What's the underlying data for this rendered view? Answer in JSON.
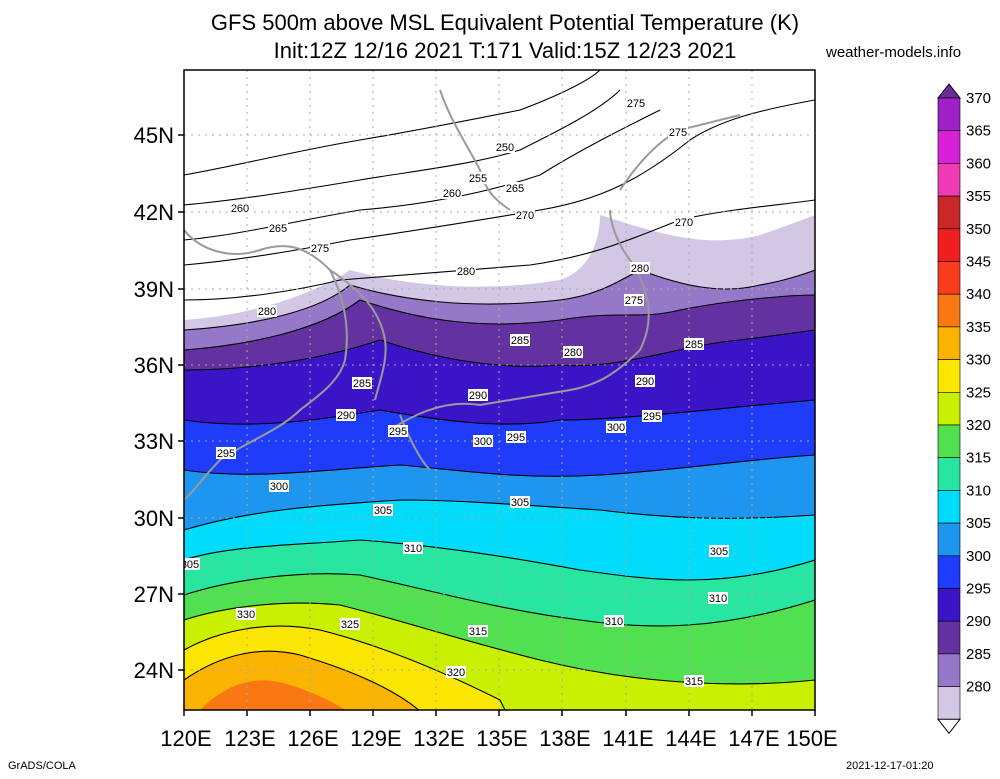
{
  "title_line1": "GFS 500m above MSL Equivalent Potential Temperature (K)",
  "title_line2": "Init:12Z 12/16 2021 T:171 Valid:15Z 12/23 2021",
  "site": "weather-models.info",
  "footer_left": "GrADS/COLA",
  "footer_right": "2021-12-17-01:20",
  "lat_ticks": [
    "45N",
    "42N",
    "39N",
    "36N",
    "33N",
    "30N",
    "27N",
    "24N"
  ],
  "lon_ticks": [
    "120E",
    "123E",
    "126E",
    "129E",
    "132E",
    "135E",
    "138E",
    "141E",
    "144E",
    "147E",
    "150E"
  ],
  "colorbar": {
    "levels": [
      "370",
      "365",
      "360",
      "355",
      "350",
      "345",
      "340",
      "335",
      "330",
      "325",
      "320",
      "315",
      "310",
      "305",
      "300",
      "295",
      "290",
      "285",
      "280"
    ],
    "colors": [
      "#6a2e9a",
      "#a020c8",
      "#d820d8",
      "#f03cb4",
      "#c82828",
      "#f01e1e",
      "#fa3c1e",
      "#fa7814",
      "#fab400",
      "#fae600",
      "#c8f000",
      "#50e050",
      "#28e6a0",
      "#00dcfa",
      "#1e96f0",
      "#1e3cfa",
      "#3c14c8",
      "#6432a0",
      "#9678c8",
      "#d2c8e6"
    ]
  },
  "contour_labels": [
    "275",
    "275",
    "250",
    "255",
    "265",
    "260",
    "270",
    "260",
    "265",
    "270",
    "275",
    "280",
    "280",
    "280",
    "275",
    "285",
    "280",
    "285",
    "290",
    "285",
    "290",
    "290",
    "295",
    "300",
    "295",
    "300",
    "295",
    "295",
    "300",
    "305",
    "305",
    "310",
    "305",
    "305",
    "310",
    "310",
    "330",
    "325",
    "315",
    "320",
    "315"
  ]
}
